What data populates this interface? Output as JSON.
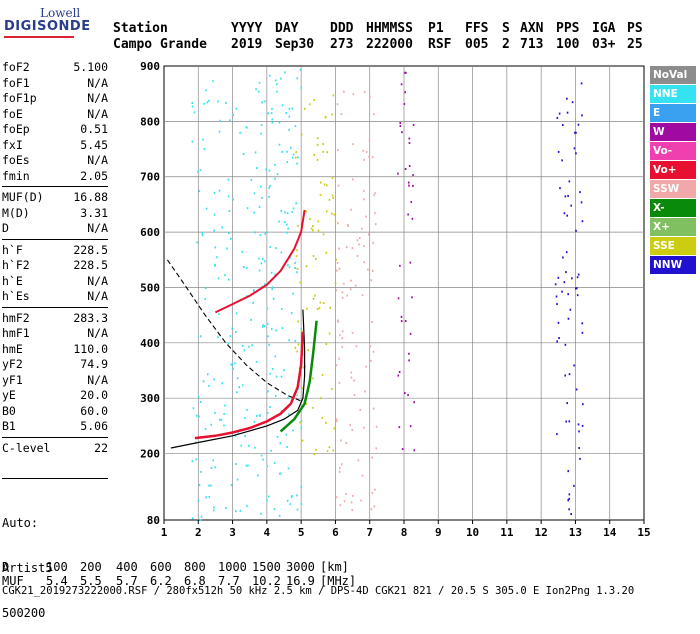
{
  "logo": {
    "line1": "Lowell",
    "line2": "DIGISONDE"
  },
  "header": {
    "labels": [
      "Station",
      "YYYY",
      "DAY",
      "DDD",
      "HHMMSS",
      "P1",
      "FFS",
      "S",
      "AXN",
      "PPS",
      "IGA",
      "PS"
    ],
    "values": [
      "Campo Grande",
      "2019",
      "Sep30",
      "273",
      "222000",
      "RSF",
      "005",
      "2",
      "713",
      "100",
      "03+",
      "25"
    ]
  },
  "params": [
    {
      "group": [
        {
          "name": "foF2",
          "value": "5.100"
        },
        {
          "name": "foF1",
          "value": "N/A"
        },
        {
          "name": "foF1p",
          "value": "N/A"
        },
        {
          "name": "foE",
          "value": "N/A"
        },
        {
          "name": "foEp",
          "value": "0.51"
        },
        {
          "name": "fxI",
          "value": "5.45"
        },
        {
          "name": "foEs",
          "value": "N/A"
        },
        {
          "name": "fmin",
          "value": "2.05"
        }
      ]
    },
    {
      "group": [
        {
          "name": "MUF(D)",
          "value": "16.88"
        },
        {
          "name": "M(D)",
          "value": "3.31"
        },
        {
          "name": "D",
          "value": "N/A"
        }
      ]
    },
    {
      "group": [
        {
          "name": "h`F",
          "value": "228.5"
        },
        {
          "name": "h`F2",
          "value": "228.5"
        },
        {
          "name": "h`E",
          "value": "N/A"
        },
        {
          "name": "h`Es",
          "value": "N/A"
        }
      ]
    },
    {
      "group": [
        {
          "name": "hmF2",
          "value": "283.3"
        },
        {
          "name": "hmF1",
          "value": "N/A"
        },
        {
          "name": "hmE",
          "value": "110.0"
        },
        {
          "name": "yF2",
          "value": "74.9"
        },
        {
          "name": "yF1",
          "value": "N/A"
        },
        {
          "name": "yE",
          "value": "20.0"
        },
        {
          "name": "B0",
          "value": "60.0"
        },
        {
          "name": "B1",
          "value": "5.06"
        }
      ]
    },
    {
      "group": [
        {
          "name": "C-level",
          "value": "22"
        }
      ]
    }
  ],
  "auto": {
    "line1": "Auto:",
    "line2": "Artist5",
    "line3": "500200"
  },
  "bottom_table": {
    "d_label": "D",
    "d_values": [
      "100",
      "200",
      "400",
      "600",
      "800",
      "1000",
      "1500",
      "3000",
      "[km]"
    ],
    "muf_label": "MUF",
    "muf_values": [
      "5.4",
      "5.5",
      "5.7",
      "6.2",
      "6.8",
      "7.7",
      "10.2",
      "16.9",
      "[MHz]"
    ]
  },
  "footer": "CGK21_2019273222000.RSF / 280fx512h 50 kHz 2.5 km / DPS-4D CGK21 821 / 20.5 S 305.0 E Ion2Png 1.3.20",
  "legend": [
    {
      "label": "NoVal",
      "color": "#8c8c8c"
    },
    {
      "label": "NNE",
      "color": "#35e3f0"
    },
    {
      "label": "E",
      "color": "#3aa0f0"
    },
    {
      "label": "W",
      "color": "#a00aa0"
    },
    {
      "label": "Vo-",
      "color": "#f040b0"
    },
    {
      "label": "Vo+",
      "color": "#e81030"
    },
    {
      "label": "SSW",
      "color": "#f0a8a8"
    },
    {
      "label": "X-",
      "color": "#0a8a0a"
    },
    {
      "label": "X+",
      "color": "#80c060"
    },
    {
      "label": "SSE",
      "color": "#cccc10"
    },
    {
      "label": "NNW",
      "color": "#2010d0"
    }
  ],
  "chart_data": {
    "type": "scatter",
    "xlim": [
      1,
      15
    ],
    "ylim": [
      80,
      900
    ],
    "x_ticks": [
      1,
      2,
      3,
      4,
      5,
      6,
      7,
      8,
      9,
      10,
      11,
      12,
      13,
      14,
      15
    ],
    "y_ticks": [
      80,
      200,
      300,
      400,
      500,
      600,
      700,
      800,
      900
    ],
    "virtual_height_trace": {
      "color": "#e81030",
      "points": [
        [
          1.9,
          228
        ],
        [
          2.5,
          232
        ],
        [
          3.0,
          238
        ],
        [
          3.5,
          246
        ],
        [
          4.0,
          258
        ],
        [
          4.4,
          272
        ],
        [
          4.7,
          290
        ],
        [
          4.9,
          320
        ],
        [
          5.0,
          360
        ],
        [
          5.05,
          420
        ]
      ]
    },
    "extraordinary_trace": {
      "color": "#0a8a0a",
      "points": [
        [
          4.4,
          240
        ],
        [
          4.8,
          262
        ],
        [
          5.1,
          290
        ],
        [
          5.25,
          330
        ],
        [
          5.35,
          380
        ],
        [
          5.45,
          440
        ]
      ]
    },
    "profile_curve": {
      "color": "#000000",
      "points": [
        [
          1.2,
          210
        ],
        [
          2.0,
          220
        ],
        [
          3.0,
          232
        ],
        [
          4.0,
          250
        ],
        [
          4.5,
          262
        ],
        [
          4.9,
          278
        ],
        [
          5.05,
          300
        ],
        [
          5.1,
          340
        ],
        [
          5.1,
          390
        ],
        [
          5.05,
          460
        ]
      ]
    },
    "second_hop_trace": {
      "color": "#e81030",
      "points": [
        [
          2.5,
          455
        ],
        [
          3.0,
          470
        ],
        [
          3.5,
          485
        ],
        [
          4.0,
          505
        ],
        [
          4.4,
          530
        ],
        [
          4.8,
          570
        ],
        [
          5.0,
          600
        ],
        [
          5.1,
          640
        ]
      ]
    },
    "dashed_curve": {
      "color": "#000000",
      "points": [
        [
          1.1,
          550
        ],
        [
          1.6,
          505
        ],
        [
          2.2,
          450
        ],
        [
          2.8,
          400
        ],
        [
          3.4,
          360
        ],
        [
          4.0,
          328
        ],
        [
          4.6,
          305
        ],
        [
          5.0,
          295
        ]
      ]
    },
    "scatter_clusters": [
      {
        "color": "#35e3f0",
        "x": [
          1.8,
          5.0
        ],
        "y": [
          80,
          900
        ]
      },
      {
        "color": "#cccc10",
        "x": [
          4.8,
          6.0
        ],
        "y": [
          200,
          850
        ]
      },
      {
        "color": "#f0a8a8",
        "x": [
          6.0,
          7.2
        ],
        "y": [
          90,
          880
        ]
      },
      {
        "color": "#a00aa0",
        "x": [
          7.8,
          8.3
        ],
        "y": [
          180,
          900
        ]
      },
      {
        "color": "#2010d0",
        "x": [
          12.4,
          13.2
        ],
        "y": [
          90,
          890
        ]
      }
    ]
  }
}
